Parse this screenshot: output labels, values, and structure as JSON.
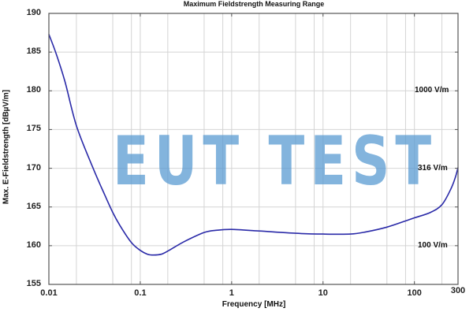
{
  "chart_data": {
    "type": "line",
    "title": "Maximum Fieldstrength Measuring Range",
    "xlabel": "Frequency [MHz]",
    "ylabel": "Max. E-Fieldstrength [dBµV/m]",
    "xscale": "log",
    "xlim": [
      0.01,
      300
    ],
    "ylim": [
      155,
      190
    ],
    "grid": true,
    "x_ticks": [
      {
        "value": 0.01,
        "label": "0.01"
      },
      {
        "value": 0.1,
        "label": "0.1"
      },
      {
        "value": 1,
        "label": "1"
      },
      {
        "value": 10,
        "label": "10"
      },
      {
        "value": 100,
        "label": "100"
      },
      {
        "value": 300,
        "label": "300"
      }
    ],
    "y_ticks": [
      155,
      160,
      165,
      170,
      175,
      180,
      185,
      190
    ],
    "x_minor_grid": [
      0.02,
      0.05,
      0.08,
      0.2,
      0.5,
      0.8,
      2,
      5,
      8,
      20,
      50,
      80,
      200
    ],
    "series": [
      {
        "name": "Max. E-Fieldstrength",
        "color": "#2a2aa8",
        "x": [
          0.01,
          0.012,
          0.015,
          0.02,
          0.03,
          0.04,
          0.05,
          0.06,
          0.08,
          0.1,
          0.12,
          0.14,
          0.17,
          0.2,
          0.3,
          0.5,
          0.7,
          1,
          2,
          5,
          10,
          20,
          30,
          50,
          80,
          100,
          150,
          200,
          250,
          280,
          300
        ],
        "y": [
          187.3,
          184.8,
          181.2,
          175.5,
          170.2,
          166.8,
          164.3,
          162.6,
          160.4,
          159.4,
          158.9,
          158.8,
          158.9,
          159.3,
          160.5,
          161.7,
          162.0,
          162.1,
          161.9,
          161.6,
          161.5,
          161.5,
          161.8,
          162.4,
          163.2,
          163.6,
          164.3,
          165.3,
          167.3,
          168.8,
          170.1
        ]
      }
    ],
    "annotations": [
      {
        "label": "1000 V/m",
        "y": 180
      },
      {
        "label": "316 V/m",
        "y": 170
      },
      {
        "label": "100 V/m",
        "y": 160
      }
    ],
    "watermark": "EUT TEST"
  }
}
